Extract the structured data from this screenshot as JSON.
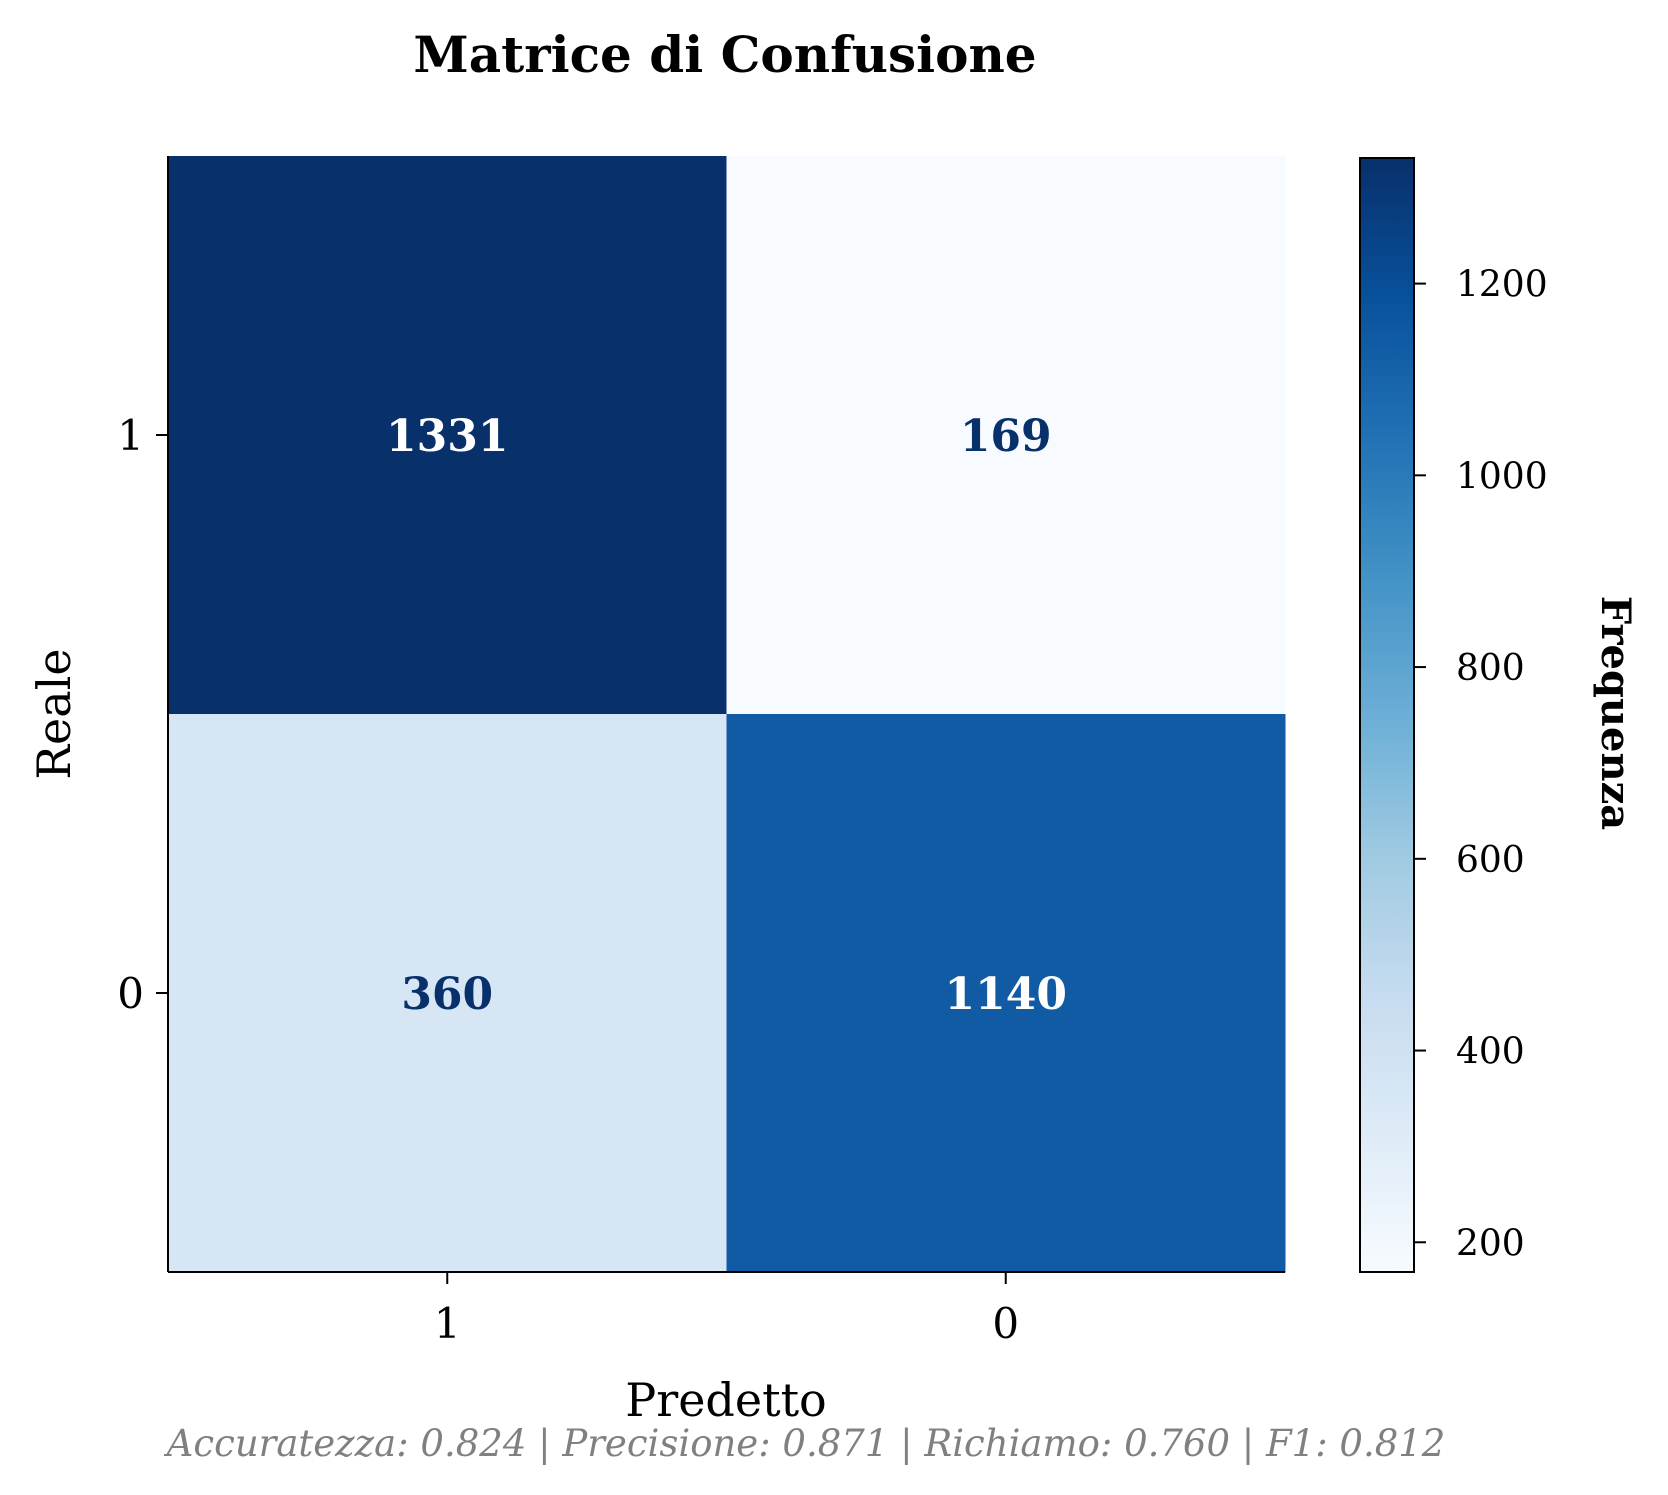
{
  "chart_data": {
    "type": "heatmap",
    "title": "Matrice di Confusione",
    "xlabel": "Predetto",
    "ylabel": "Reale",
    "x_categories": [
      "1",
      "0"
    ],
    "y_categories": [
      "1",
      "0"
    ],
    "values": [
      [
        1331,
        169
      ],
      [
        360,
        1140
      ]
    ],
    "colorbar": {
      "label": "Frequenza",
      "range": [
        169,
        1331
      ],
      "ticks": [
        200,
        400,
        600,
        800,
        1000,
        1200
      ],
      "colormap": "Blues"
    },
    "footer": "Accuratezza: 0.824 | Precisione: 0.871 | Richiamo: 0.760 | F1: 0.812",
    "colors": {
      "dark_text": "#08306b",
      "light_text": "#ffffff",
      "footer_text": "#808080"
    }
  }
}
